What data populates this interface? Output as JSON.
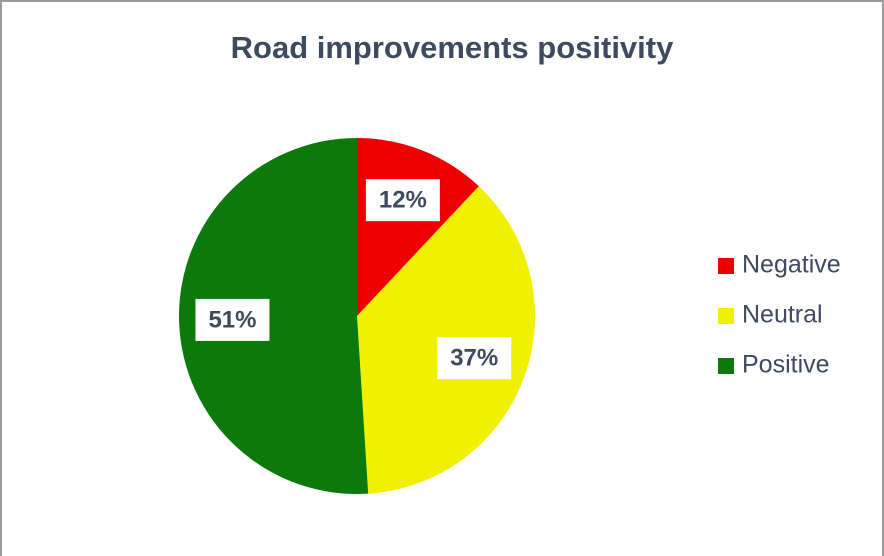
{
  "chart_data": {
    "type": "pie",
    "title": "Road improvements positivity",
    "categories": [
      "Negative",
      "Neutral",
      "Positive"
    ],
    "values": [
      12,
      37,
      51
    ],
    "value_labels": [
      "12%",
      "37%",
      "51%"
    ],
    "colors": [
      "#ee0000",
      "#f0f000",
      "#0b7a0b"
    ],
    "legend": "right"
  }
}
